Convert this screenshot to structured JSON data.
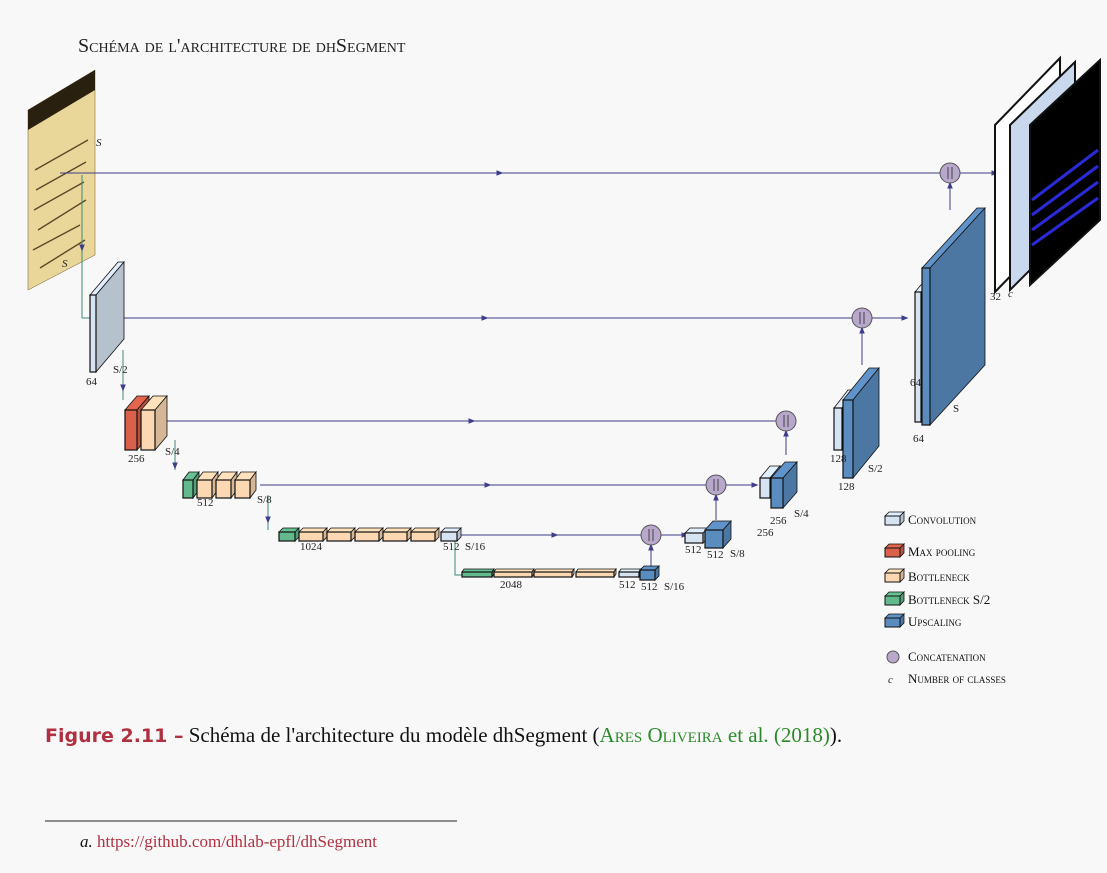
{
  "figure": {
    "title": "Schéma de l'architecture de dhSegment",
    "labels": [
      "S",
      "S",
      "64",
      "S/2",
      "256",
      "S/4",
      "512",
      "S/8",
      "1024",
      "512",
      "S/16",
      "2048",
      "512",
      "512",
      "S/16",
      "512",
      "512",
      "S/8",
      "256",
      "256",
      "S/4",
      "128",
      "128",
      "S/2",
      "64",
      "64",
      "S",
      "32",
      "c"
    ],
    "legend": [
      {
        "label": "Convolution"
      },
      {
        "label": "Max pooling"
      },
      {
        "label": "Bottleneck"
      },
      {
        "label": "Bottleneck S/2"
      },
      {
        "label": "Upscaling"
      },
      {
        "label": "Concatenation"
      },
      {
        "symbol": "c",
        "label": "Number of classes"
      }
    ]
  },
  "caption": {
    "number": "Figure 2.11 –",
    "text_before": "Schéma de l'architecture du modèle dhSegment (",
    "author": "Ares Oliveira",
    "citation": "et al. (2018)",
    "text_after": ")."
  },
  "footnote": {
    "marker": "a.",
    "url": "https://github.com/dhlab-epfl/dhSegment"
  }
}
